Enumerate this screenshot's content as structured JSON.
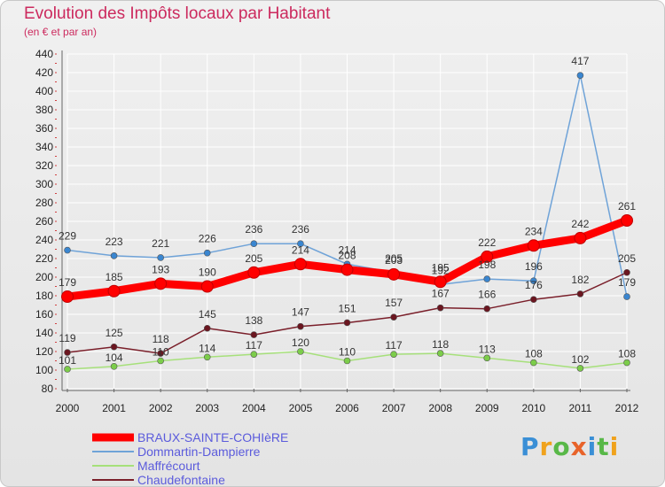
{
  "header": {
    "title": "Evolution des Impôts locaux par Habitant",
    "subtitle": "(en € et par an)"
  },
  "logo": {
    "text": "Proxiti",
    "letters": [
      "P",
      "r",
      "o",
      "x",
      "i",
      "t",
      "i"
    ],
    "colors": [
      "#3a8fd6",
      "#f0a21c",
      "#58b848",
      "#e8632a",
      "#3a8fd6",
      "#58b848",
      "#f0a21c"
    ]
  },
  "chart_data": {
    "type": "line",
    "title": "Evolution des Impôts locaux par Habitant",
    "subtitle": "(en € et par an)",
    "xlabel": "",
    "ylabel": "",
    "x": [
      "2000",
      "2001",
      "2002",
      "2003",
      "2004",
      "2005",
      "2006",
      "2007",
      "2008",
      "2009",
      "2010",
      "2011",
      "2012"
    ],
    "ylim": [
      80,
      440
    ],
    "yticks": [
      80,
      100,
      120,
      140,
      160,
      180,
      200,
      220,
      240,
      260,
      280,
      300,
      320,
      340,
      360,
      380,
      400,
      420,
      440
    ],
    "grid": true,
    "legend_position": "bottom-left",
    "series": [
      {
        "name": "BRAUX-SAINTE-COHIèRE",
        "color": "#ff0000",
        "text_color": "#5b5bdc",
        "emphasis": true,
        "values": [
          179,
          185,
          193,
          190,
          205,
          214,
          208,
          203,
          195,
          222,
          234,
          242,
          261
        ],
        "labels": [
          "179",
          "185",
          "193",
          "190",
          "205",
          "214",
          "208",
          "203",
          "195",
          "222",
          "234",
          "242",
          "261"
        ]
      },
      {
        "name": "Dommartin-Dampierre",
        "color": "#6fa3d8",
        "marker_color": "#3a86d0",
        "text_color": "#5b5bdc",
        "values": [
          229,
          223,
          221,
          226,
          236,
          236,
          214,
          205,
          192,
          198,
          196,
          417,
          179
        ],
        "labels": [
          "229",
          "223",
          "221",
          "226",
          "236",
          "236",
          "214",
          "205",
          "192",
          "198",
          "196",
          "417",
          "179"
        ]
      },
      {
        "name": "Maffrécourt",
        "color": "#a6e07a",
        "marker_color": "#7ccd4a",
        "text_color": "#5b5bdc",
        "values": [
          101,
          104,
          110,
          114,
          117,
          120,
          110,
          117,
          118,
          113,
          108,
          102,
          108
        ],
        "labels": [
          "101",
          "104",
          "110",
          "114",
          "117",
          "120",
          "110",
          "117",
          "118",
          "113",
          "108",
          "102",
          "108"
        ]
      },
      {
        "name": "Chaudefontaine",
        "color": "#7a1f2a",
        "marker_color": "#6b1620",
        "text_color": "#5b5bdc",
        "values": [
          119,
          125,
          118,
          145,
          138,
          147,
          151,
          157,
          167,
          166,
          176,
          182,
          205
        ],
        "labels": [
          "119",
          "125",
          "118",
          "145",
          "138",
          "147",
          "151",
          "157",
          "167",
          "166",
          "176",
          "182",
          "205"
        ]
      }
    ]
  }
}
